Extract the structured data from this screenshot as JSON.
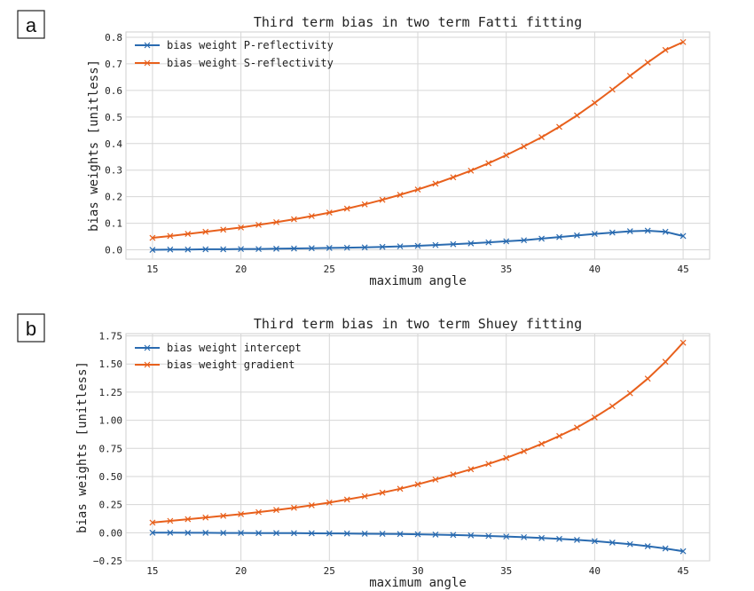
{
  "panels": [
    {
      "label": "a"
    },
    {
      "label": "b"
    }
  ],
  "colors": {
    "series1": "#2a6bb0",
    "series2": "#e8601c",
    "grid": "#d6d6d6",
    "frame": "#cfcfcf"
  },
  "chart_data": [
    {
      "type": "line",
      "title": "Third term bias in two term Fatti fitting",
      "xlabel": "maximum angle",
      "ylabel": "bias weights [unitless]",
      "xlim": [
        13.5,
        46.5
      ],
      "ylim": [
        -0.035,
        0.82
      ],
      "grid": true,
      "legend": "top-left",
      "marker": "x",
      "xticks": [
        "15",
        "20",
        "25",
        "30",
        "35",
        "40",
        "45"
      ],
      "yticks": [
        "0.0",
        "0.1",
        "0.2",
        "0.3",
        "0.4",
        "0.5",
        "0.6",
        "0.7",
        "0.8"
      ],
      "x": [
        15,
        16,
        17,
        18,
        19,
        20,
        21,
        22,
        23,
        24,
        25,
        26,
        27,
        28,
        29,
        30,
        31,
        32,
        33,
        34,
        35,
        36,
        37,
        38,
        39,
        40,
        41,
        42,
        43,
        44,
        45
      ],
      "series": [
        {
          "name": "bias weight P-reflectivity",
          "values": [
            0.0,
            0.001,
            0.001,
            0.002,
            0.002,
            0.003,
            0.003,
            0.004,
            0.005,
            0.006,
            0.007,
            0.008,
            0.009,
            0.011,
            0.013,
            0.015,
            0.018,
            0.021,
            0.024,
            0.028,
            0.032,
            0.036,
            0.042,
            0.048,
            0.054,
            0.06,
            0.065,
            0.07,
            0.072,
            0.068,
            0.052
          ]
        },
        {
          "name": "bias weight S-reflectivity",
          "values": [
            0.045,
            0.052,
            0.06,
            0.068,
            0.076,
            0.084,
            0.094,
            0.104,
            0.115,
            0.127,
            0.14,
            0.155,
            0.171,
            0.188,
            0.207,
            0.227,
            0.249,
            0.273,
            0.298,
            0.326,
            0.356,
            0.389,
            0.424,
            0.463,
            0.506,
            0.553,
            0.603,
            0.655,
            0.705,
            0.752,
            0.782
          ]
        }
      ]
    },
    {
      "type": "line",
      "title": "Third term bias in two term Shuey fitting",
      "xlabel": "maximum angle",
      "ylabel": "bias weights [unitless]",
      "xlim": [
        13.5,
        46.5
      ],
      "ylim": [
        -0.25,
        1.77
      ],
      "grid": true,
      "legend": "top-left",
      "marker": "x",
      "xticks": [
        "15",
        "20",
        "25",
        "30",
        "35",
        "40",
        "45"
      ],
      "yticks": [
        "−0.25",
        "0.00",
        "0.25",
        "0.50",
        "0.75",
        "1.00",
        "1.25",
        "1.50",
        "1.75"
      ],
      "x": [
        15,
        16,
        17,
        18,
        19,
        20,
        21,
        22,
        23,
        24,
        25,
        26,
        27,
        28,
        29,
        30,
        31,
        32,
        33,
        34,
        35,
        36,
        37,
        38,
        39,
        40,
        41,
        42,
        43,
        44,
        45
      ],
      "series": [
        {
          "name": "bias weight intercept",
          "values": [
            0.0,
            0.0,
            -0.001,
            -0.001,
            -0.002,
            -0.002,
            -0.003,
            -0.003,
            -0.004,
            -0.005,
            -0.006,
            -0.007,
            -0.009,
            -0.01,
            -0.012,
            -0.014,
            -0.017,
            -0.02,
            -0.024,
            -0.029,
            -0.034,
            -0.04,
            -0.047,
            -0.055,
            -0.064,
            -0.075,
            -0.088,
            -0.102,
            -0.12,
            -0.14,
            -0.165
          ]
        },
        {
          "name": "bias weight gradient",
          "values": [
            0.09,
            0.105,
            0.12,
            0.135,
            0.15,
            0.165,
            0.183,
            0.202,
            0.222,
            0.244,
            0.268,
            0.295,
            0.324,
            0.356,
            0.391,
            0.43,
            0.473,
            0.518,
            0.564,
            0.612,
            0.665,
            0.725,
            0.79,
            0.86,
            0.935,
            1.025,
            1.125,
            1.24,
            1.37,
            1.52,
            1.69
          ]
        }
      ]
    }
  ]
}
